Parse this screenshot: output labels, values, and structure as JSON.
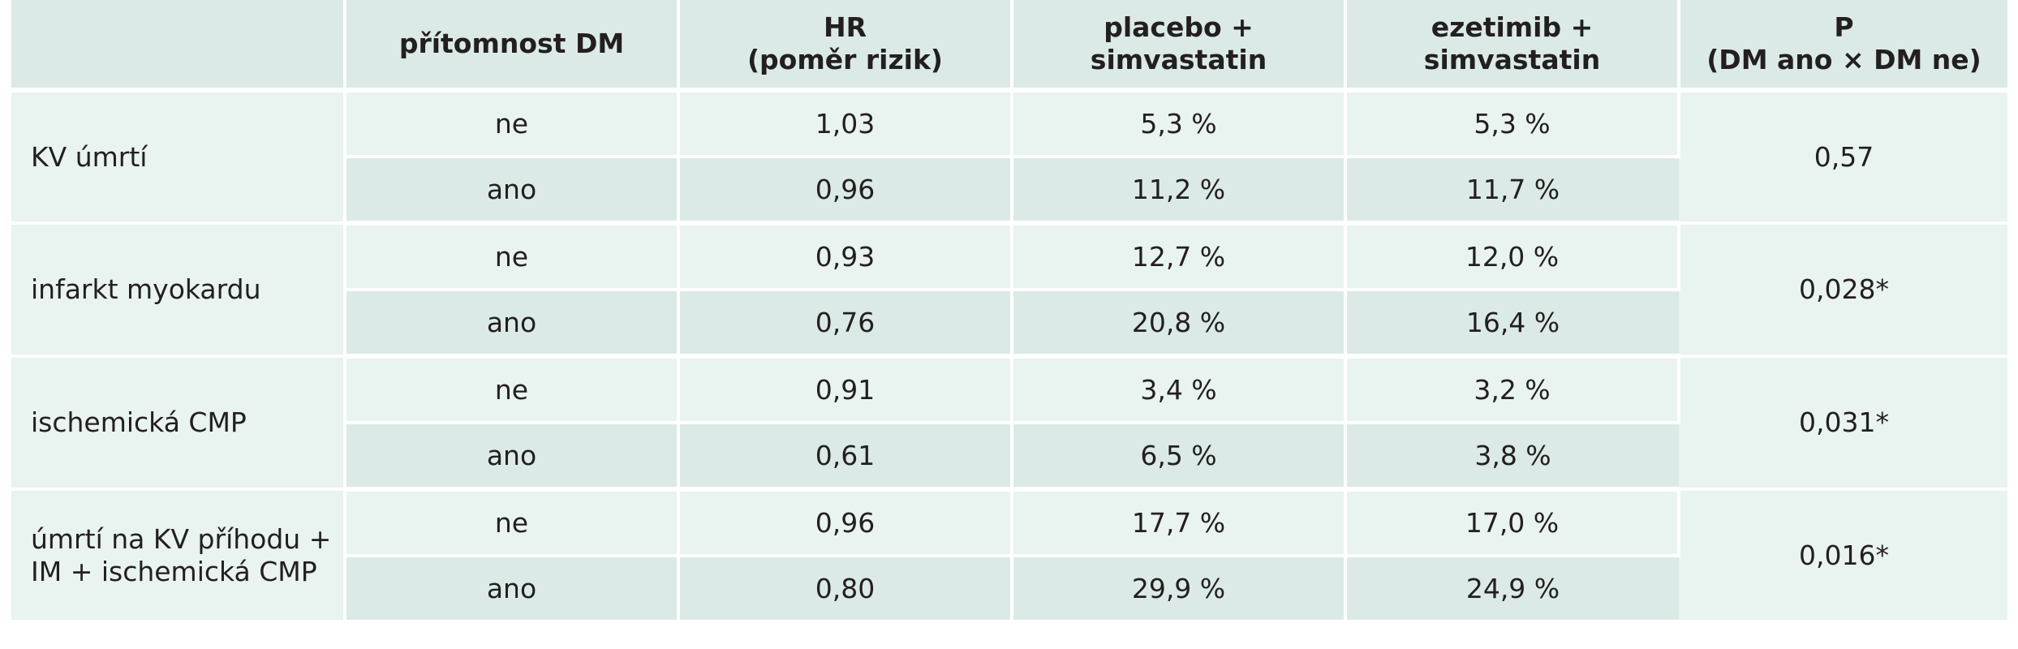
{
  "table": {
    "headers": [
      {
        "line1": "",
        "line2": ""
      },
      {
        "line1": "přítomnost DM",
        "line2": ""
      },
      {
        "line1": "HR",
        "line2": "(poměr rizik)"
      },
      {
        "line1": "placebo +",
        "line2": "simvastatin"
      },
      {
        "line1": "ezetimib +",
        "line2": "simvastatin"
      },
      {
        "line1": "P",
        "line2": "(DM ano × DM ne)"
      }
    ],
    "groups": [
      {
        "label": "KV úmrtí",
        "p": "0,57",
        "rows": [
          {
            "dm": "ne",
            "hr": "1,03",
            "placebo": "5,3 %",
            "ezetimib": "5,3 %"
          },
          {
            "dm": "ano",
            "hr": "0,96",
            "placebo": "11,2 %",
            "ezetimib": "11,7 %"
          }
        ]
      },
      {
        "label": "infarkt myokardu",
        "p": "0,028*",
        "rows": [
          {
            "dm": "ne",
            "hr": "0,93",
            "placebo": "12,7 %",
            "ezetimib": "12,0 %"
          },
          {
            "dm": "ano",
            "hr": "0,76",
            "placebo": "20,8 %",
            "ezetimib": "16,4 %"
          }
        ]
      },
      {
        "label": "ischemická CMP",
        "p": "0,031*",
        "rows": [
          {
            "dm": "ne",
            "hr": "0,91",
            "placebo": "3,4 %",
            "ezetimib": "3,2 %"
          },
          {
            "dm": "ano",
            "hr": "0,61",
            "placebo": "6,5 %",
            "ezetimib": "3,8 %"
          }
        ]
      },
      {
        "label": "úmrtí na KV příhodu + IM + ischemická CMP",
        "p": "0,016*",
        "rows": [
          {
            "dm": "ne",
            "hr": "0,96",
            "placebo": "17,7 %",
            "ezetimib": "17,0 %"
          },
          {
            "dm": "ano",
            "hr": "0,80",
            "placebo": "29,9 %",
            "ezetimib": "24,9 %"
          }
        ]
      }
    ]
  },
  "colors": {
    "header_bg": "#dbeae6",
    "row_light": "#e9f3f0",
    "row_dark": "#dbeae6",
    "text": "#231f20"
  }
}
